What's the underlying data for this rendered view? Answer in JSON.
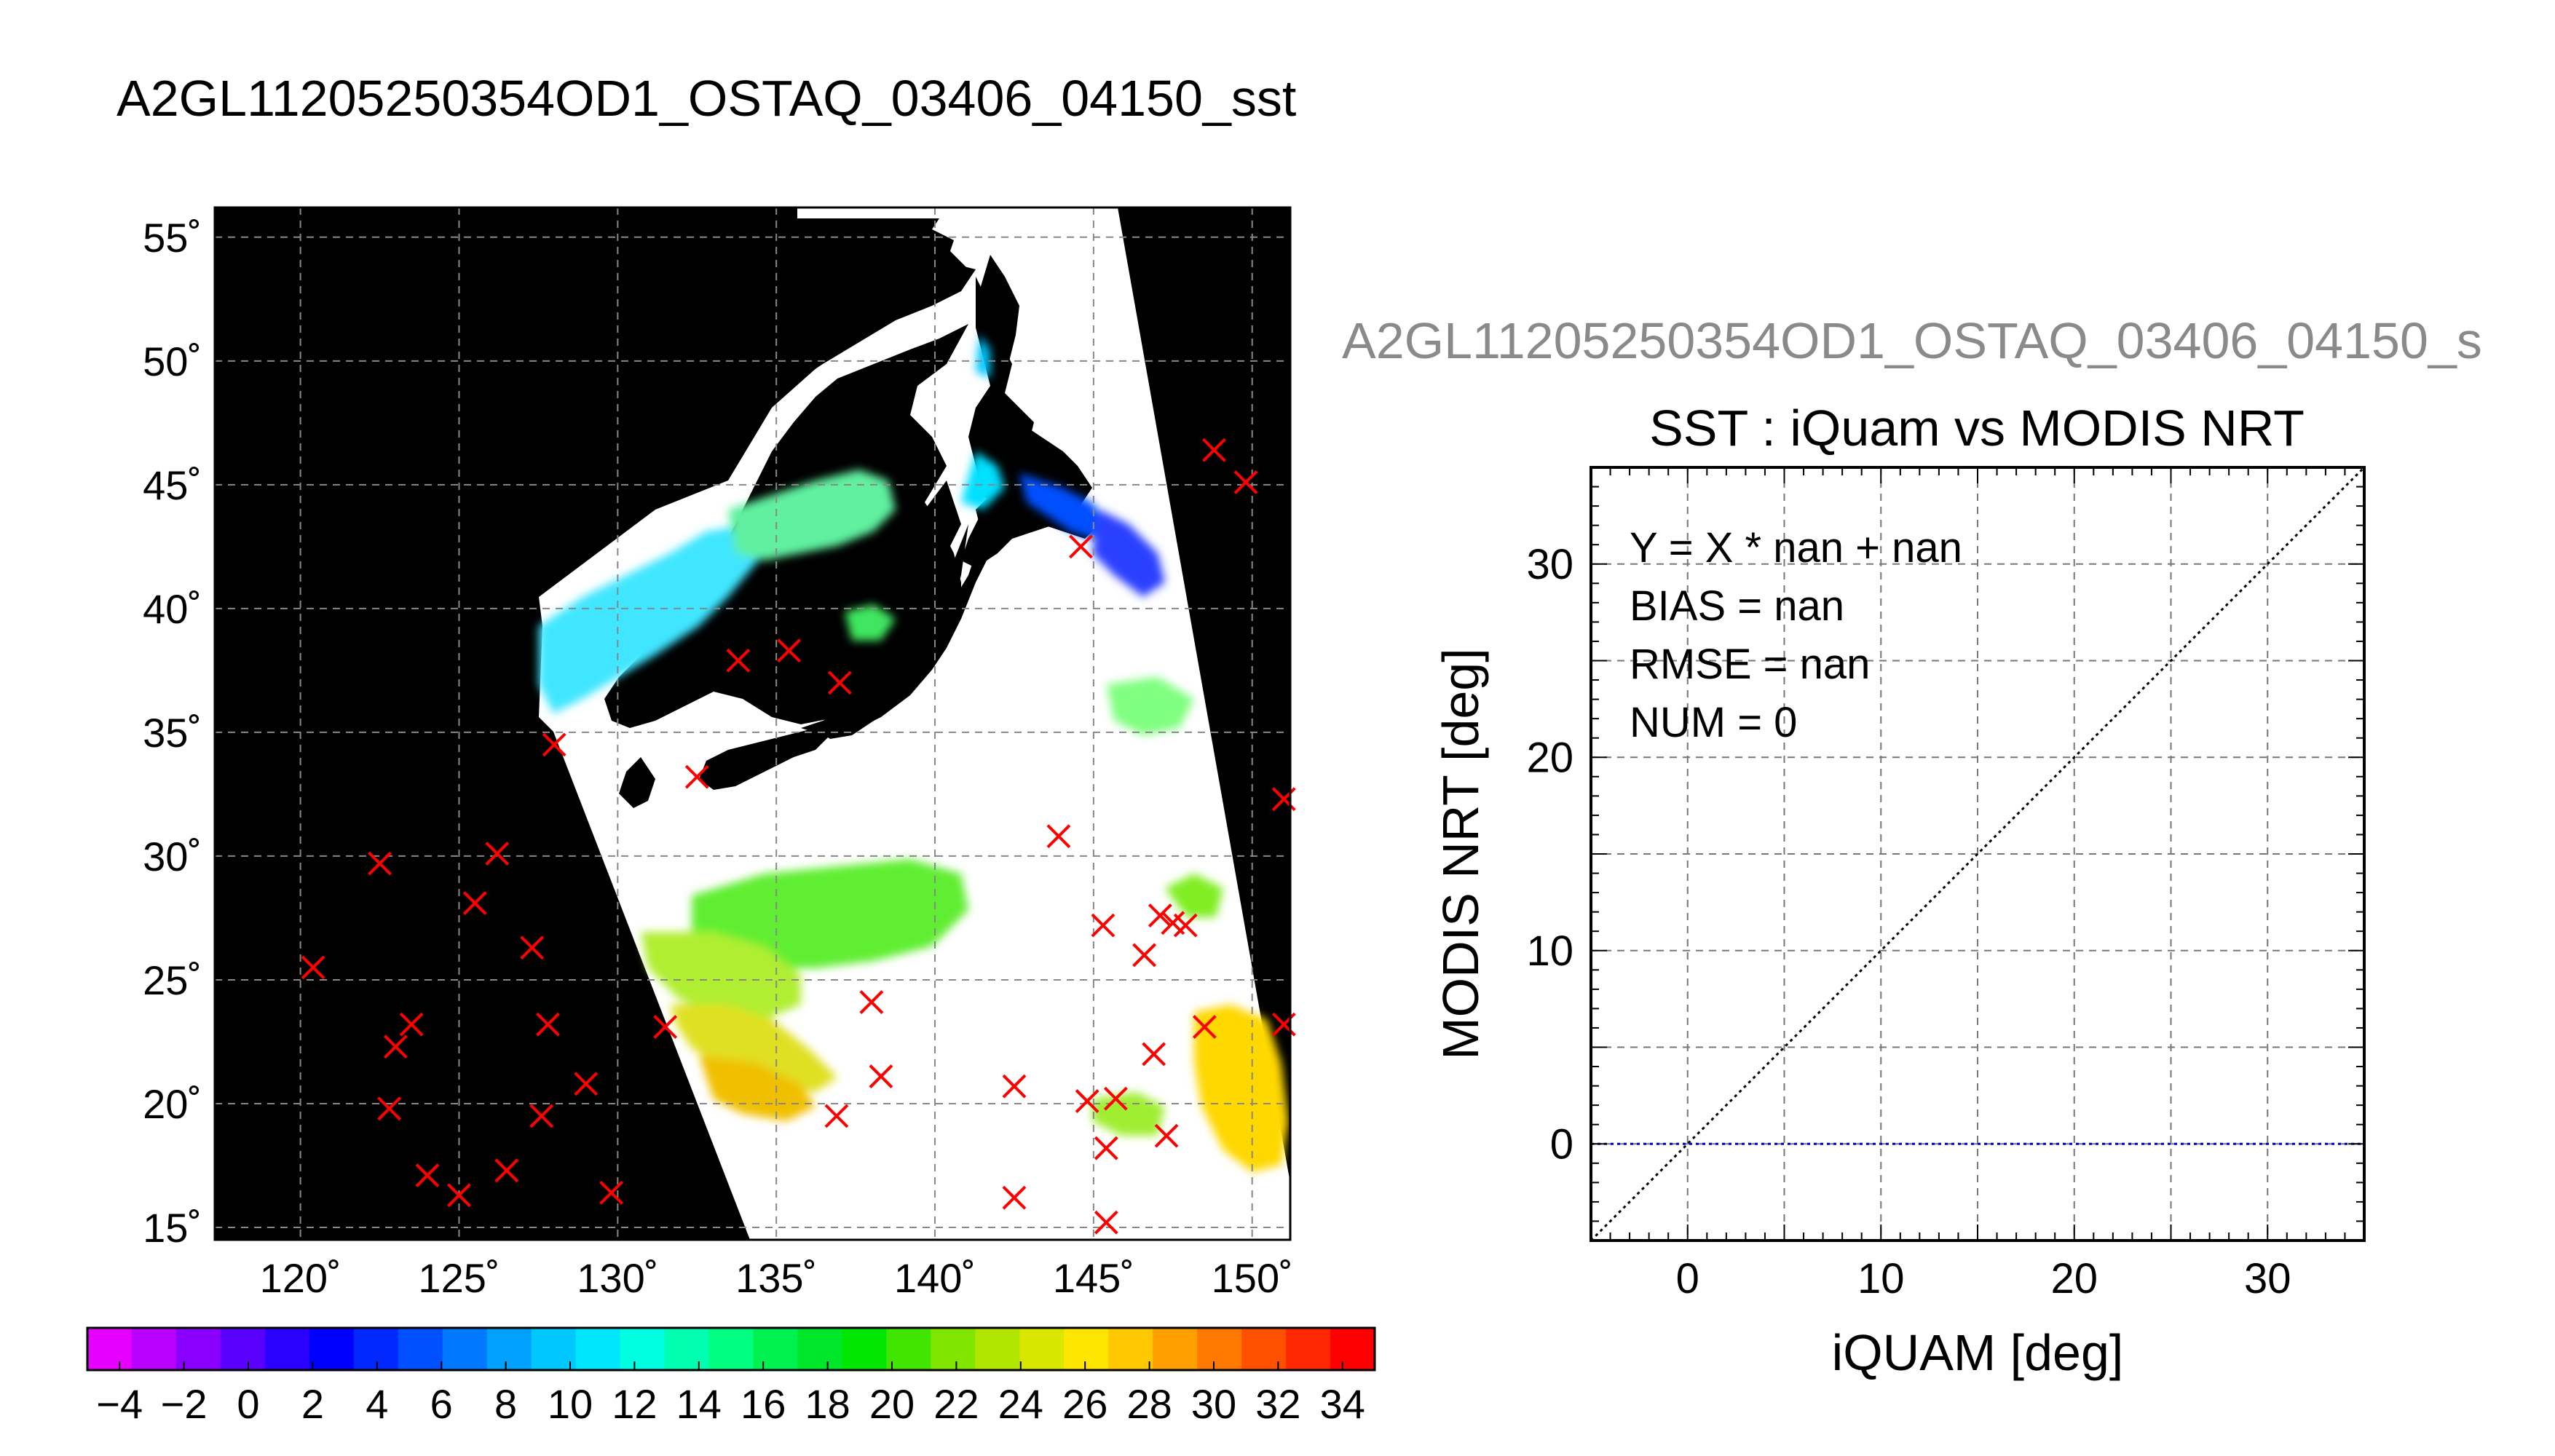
{
  "page_title": "A2GL11205250354OD1_OSTAQ_03406_04150_sst",
  "map": {
    "lat_ticks": [
      "55˚",
      "50˚",
      "45˚",
      "40˚",
      "35˚",
      "30˚",
      "25˚",
      "20˚",
      "15˚"
    ],
    "lat_values": [
      55,
      50,
      45,
      40,
      35,
      30,
      25,
      20,
      15
    ],
    "lon_ticks": [
      "120˚",
      "125˚",
      "130˚",
      "135˚",
      "140˚",
      "145˚",
      "150˚"
    ],
    "lon_values": [
      120,
      125,
      130,
      135,
      140,
      145,
      150
    ],
    "lon_range": [
      117.3,
      151.2
    ],
    "lat_range": [
      14.5,
      56.2
    ],
    "colors": {
      "land_and_nodata": "#000000",
      "cloud": "#ffffff",
      "match_marker": "#ff0000",
      "grid": "#888888"
    },
    "iquam_points": [
      [
        120.4,
        25.5
      ],
      [
        122.5,
        29.7
      ],
      [
        123.0,
        22.3
      ],
      [
        123.5,
        23.2
      ],
      [
        122.8,
        19.8
      ],
      [
        124.0,
        17.1
      ],
      [
        125.0,
        16.3
      ],
      [
        125.5,
        28.1
      ],
      [
        126.2,
        30.1
      ],
      [
        126.5,
        17.3
      ],
      [
        127.3,
        26.3
      ],
      [
        127.6,
        19.5
      ],
      [
        127.8,
        23.2
      ],
      [
        129.0,
        20.8
      ],
      [
        129.8,
        16.4
      ],
      [
        131.5,
        23.1
      ],
      [
        128.0,
        34.5
      ],
      [
        132.5,
        33.2
      ],
      [
        133.8,
        37.9
      ],
      [
        135.4,
        38.3
      ],
      [
        137.0,
        37.0
      ],
      [
        136.9,
        19.5
      ],
      [
        138.0,
        24.1
      ],
      [
        138.3,
        21.1
      ],
      [
        142.5,
        20.7
      ],
      [
        142.5,
        16.2
      ],
      [
        143.9,
        30.8
      ],
      [
        144.8,
        20.1
      ],
      [
        145.3,
        27.2
      ],
      [
        145.7,
        20.2
      ],
      [
        145.4,
        18.2
      ],
      [
        145.4,
        15.2
      ],
      [
        146.6,
        26.0
      ],
      [
        147.1,
        27.6
      ],
      [
        147.5,
        27.3
      ],
      [
        147.9,
        27.2
      ],
      [
        146.9,
        22.0
      ],
      [
        147.3,
        18.7
      ],
      [
        148.5,
        23.1
      ],
      [
        148.8,
        46.4
      ],
      [
        149.8,
        45.1
      ],
      [
        151.0,
        32.3
      ],
      [
        151.0,
        23.2
      ],
      [
        144.6,
        42.5
      ]
    ]
  },
  "colorbar": {
    "min": -5,
    "max": 35,
    "ticks": [
      "−4",
      "−2",
      "0",
      "2",
      "4",
      "6",
      "8",
      "10",
      "12",
      "14",
      "16",
      "18",
      "20",
      "22",
      "24",
      "26",
      "28",
      "30",
      "32",
      "34"
    ],
    "tick_values": [
      -4,
      -2,
      0,
      2,
      4,
      6,
      8,
      10,
      12,
      14,
      16,
      18,
      20,
      22,
      24,
      26,
      28,
      30,
      32,
      34
    ],
    "colors": [
      "#e600ff",
      "#b800ff",
      "#8a00ff",
      "#5a00ff",
      "#2a00ff",
      "#0000ff",
      "#0028ff",
      "#0050ff",
      "#0078ff",
      "#00a0ff",
      "#00c8ff",
      "#00e6ff",
      "#00ffe0",
      "#00ffb0",
      "#00ff80",
      "#00f050",
      "#00e628",
      "#00e600",
      "#40e600",
      "#80e600",
      "#b0e600",
      "#d8e600",
      "#ffe600",
      "#ffc800",
      "#ffa000",
      "#ff7800",
      "#ff5000",
      "#ff2800",
      "#ff0000"
    ]
  },
  "scatter_title": "A2GL11205250354OD1_OSTAQ_03406_04150_s",
  "chart_data": {
    "type": "scatter",
    "title": "SST : iQuam vs MODIS NRT",
    "xlabel": "iQUAM [deg]",
    "ylabel": "MODIS NRT [deg]",
    "xlim": [
      -5,
      35
    ],
    "ylim": [
      -5,
      35
    ],
    "x_ticks": [
      "0",
      "10",
      "20",
      "30"
    ],
    "x_tick_values": [
      0,
      10,
      20,
      30
    ],
    "y_ticks": [
      "0",
      "10",
      "20",
      "30"
    ],
    "y_tick_values": [
      0,
      10,
      20,
      30
    ],
    "grid": true,
    "series": [],
    "lines": [
      {
        "kind": "identity",
        "x": [
          -5,
          35
        ],
        "y": [
          -5,
          35
        ],
        "color": "#000000",
        "style": "dotted"
      },
      {
        "kind": "zero",
        "x": [
          -5,
          35
        ],
        "y": [
          0,
          0
        ],
        "color": "#0000cc",
        "style": "dotted"
      }
    ],
    "stats": {
      "equation": "Y = X * nan + nan",
      "bias": "BIAS = nan",
      "rmse": "RMSE = nan",
      "num": "NUM = 0"
    }
  }
}
